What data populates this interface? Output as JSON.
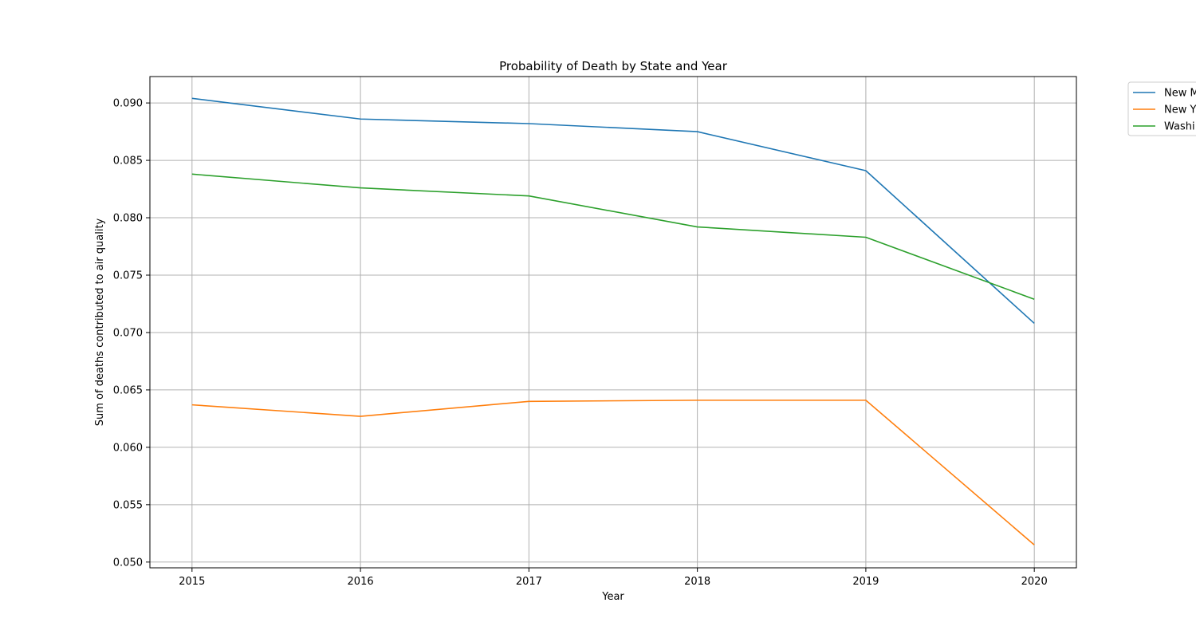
{
  "chart_data": {
    "type": "line",
    "title": "Probability of Death by State and Year",
    "xlabel": "Year",
    "ylabel": "Sum of deaths contributed to air quality",
    "x": [
      "2015",
      "2016",
      "2017",
      "2018",
      "2019",
      "2020"
    ],
    "xlim": [
      2014.75,
      2020.25
    ],
    "ylim": [
      0.0495,
      0.0923
    ],
    "yticks": [
      "0.050",
      "0.055",
      "0.060",
      "0.065",
      "0.070",
      "0.075",
      "0.080",
      "0.085",
      "0.090"
    ],
    "grid": true,
    "legend_position": "outside-top-right",
    "series": [
      {
        "name": "New M",
        "color": "#1f77b4",
        "values": [
          0.0904,
          0.0886,
          0.0882,
          0.0875,
          0.0841,
          0.0708
        ]
      },
      {
        "name": "New Y",
        "color": "#ff7f0e",
        "values": [
          0.0637,
          0.0627,
          0.064,
          0.0641,
          0.0641,
          0.0515
        ]
      },
      {
        "name": "Washi",
        "color": "#2ca02c",
        "values": [
          0.0838,
          0.0826,
          0.0819,
          0.0792,
          0.0783,
          0.0729
        ]
      }
    ]
  }
}
